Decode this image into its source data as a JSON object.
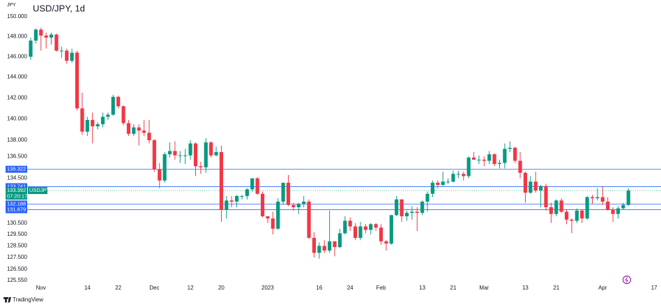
{
  "chart_data": {
    "type": "candlestick",
    "title": "USD/JPY, 1d",
    "currency": "JPY",
    "watermark": "TradingView",
    "log_scale": true,
    "up_color": "#089981",
    "down_color": "#f23645",
    "level_color": "#2962ff",
    "ylim": [
      125.3,
      151.7
    ],
    "yticks": [
      {
        "value": 150,
        "label": "150.000"
      },
      {
        "value": 148,
        "label": "148.000"
      },
      {
        "value": 146,
        "label": "146.000"
      },
      {
        "value": 144,
        "label": "144.000"
      },
      {
        "value": 142,
        "label": "142.000"
      },
      {
        "value": 140,
        "label": "140.000"
      },
      {
        "value": 138,
        "label": "138.000"
      },
      {
        "value": 136.5,
        "label": "136.500"
      },
      {
        "value": 134.5,
        "label": "134.500"
      },
      {
        "value": 130.5,
        "label": "130.500"
      },
      {
        "value": 129.5,
        "label": "129.500"
      },
      {
        "value": 128.5,
        "label": "128.500"
      },
      {
        "value": 127.5,
        "label": "127.500"
      },
      {
        "value": 126.5,
        "label": "126.500"
      },
      {
        "value": 125.55,
        "label": "125.550"
      }
    ],
    "levels": [
      135.322,
      133.741,
      132.188,
      131.679
    ],
    "last_price": {
      "value": 133.392,
      "symbol": "USDJPY",
      "countdown": "07:20:17"
    },
    "categories": [
      null,
      null,
      "Nov",
      null,
      null,
      null,
      null,
      null,
      null,
      null,
      null,
      "14",
      null,
      null,
      null,
      null,
      null,
      "22",
      null,
      null,
      null,
      null,
      null,
      null,
      "Dec",
      null,
      null,
      null,
      null,
      null,
      null,
      "12",
      null,
      null,
      null,
      null,
      null,
      "20",
      null,
      null,
      null,
      null,
      null,
      null,
      null,
      null,
      "2023",
      null,
      null,
      null,
      null,
      null,
      null,
      null,
      null,
      null,
      "16",
      null,
      null,
      null,
      null,
      null,
      "24",
      null,
      null,
      null,
      null,
      null,
      "Feb",
      null,
      null,
      null,
      null,
      null,
      null,
      null,
      "13",
      null,
      null,
      null,
      null,
      null,
      "21",
      null,
      null,
      null,
      null,
      null,
      "Mar",
      null,
      null,
      null,
      null,
      null,
      null,
      null,
      "13",
      null,
      null,
      null,
      null,
      null,
      "21",
      null,
      null,
      null,
      null,
      null,
      null,
      null,
      null,
      "Apr",
      null,
      null,
      null,
      null,
      null,
      null,
      null,
      null,
      null,
      "17"
    ],
    "open": [
      146.0,
      147.6,
      148.7,
      148.1,
      147.9,
      148.2,
      146.6,
      146.6,
      145.6,
      146.4,
      141.0,
      138.8,
      139.9,
      139.3,
      139.5,
      140.2,
      140.4,
      142.1,
      141.2,
      139.6,
      138.6,
      139.2,
      138.9,
      138.7,
      138.0,
      135.3,
      134.3,
      136.7,
      137.0,
      136.6,
      136.6,
      136.6,
      137.7,
      135.6,
      135.5,
      137.8,
      136.6,
      136.9,
      131.7,
      132.5,
      132.4,
      132.9,
      132.9,
      133.5,
      134.5,
      133.1,
      131.1,
      130.9,
      130.0,
      132.4,
      134.1,
      132.1,
      131.9,
      132.2,
      132.4,
      129.2,
      127.9,
      128.5,
      128.1,
      128.9,
      128.4,
      129.6,
      130.7,
      130.2,
      129.2,
      130.2,
      129.9,
      130.4,
      130.1,
      128.9,
      128.7,
      131.2,
      132.6,
      131.1,
      131.4,
      131.5,
      131.4,
      132.4,
      133.1,
      134.1,
      133.9,
      134.2,
      134.2,
      134.9,
      134.9,
      134.7,
      136.4,
      136.2,
      136.2,
      136.1,
      136.7,
      135.8,
      135.9,
      137.2,
      137.3,
      136.1,
      135.0,
      133.2,
      134.2,
      133.4,
      133.8,
      131.9,
      131.3,
      132.5,
      131.5,
      130.8,
      130.7,
      131.6,
      130.9,
      132.8,
      132.7,
      132.8,
      132.4,
      131.7,
      131.3,
      131.8,
      132.1,
      null,
      null,
      null,
      null,
      null
    ],
    "high": [
      147.9,
      148.8,
      148.9,
      148.4,
      148.4,
      148.3,
      147.0,
      146.8,
      146.8,
      146.6,
      142.5,
      140.2,
      140.6,
      139.7,
      140.6,
      140.6,
      142.3,
      142.2,
      141.3,
      139.9,
      139.5,
      139.5,
      139.9,
      139.9,
      138.1,
      135.9,
      136.9,
      137.8,
      137.9,
      137.0,
      137.2,
      138.0,
      137.8,
      136.0,
      138.2,
      137.9,
      137.4,
      137.5,
      132.9,
      132.9,
      133.0,
      133.0,
      133.6,
      134.5,
      134.6,
      133.3,
      131.1,
      131.5,
      132.7,
      134.1,
      134.8,
      132.3,
      132.3,
      132.9,
      132.6,
      129.7,
      128.8,
      129.0,
      131.6,
      128.9,
      130.0,
      131.1,
      131.0,
      130.5,
      130.6,
      130.4,
      130.5,
      130.5,
      130.4,
      129.0,
      131.2,
      132.9,
      132.6,
      131.6,
      132.0,
      131.9,
      132.5,
      133.3,
      134.3,
      134.3,
      135.1,
      134.5,
      135.2,
      135.2,
      135.1,
      136.5,
      136.9,
      136.6,
      136.5,
      137.0,
      136.8,
      136.2,
      137.7,
      137.9,
      137.4,
      136.9,
      135.1,
      134.7,
      135.1,
      133.9,
      134.0,
      132.3,
      132.6,
      132.7,
      131.7,
      130.9,
      131.8,
      131.7,
      132.9,
      133.0,
      133.6,
      133.8,
      132.8,
      131.9,
      132.0,
      132.3,
      133.6,
      null,
      null,
      null,
      null,
      null
    ],
    "low": [
      145.7,
      147.3,
      146.6,
      146.8,
      147.2,
      146.5,
      145.9,
      145.3,
      145.4,
      140.8,
      138.5,
      138.4,
      137.7,
      139.0,
      139.2,
      139.9,
      140.3,
      141.0,
      139.4,
      138.4,
      138.4,
      137.5,
      138.4,
      137.7,
      135.1,
      133.6,
      134.1,
      136.4,
      136.2,
      135.9,
      135.8,
      136.2,
      134.7,
      134.9,
      135.0,
      136.4,
      136.5,
      130.6,
      130.9,
      131.9,
      131.9,
      132.6,
      132.6,
      133.3,
      133.0,
      131.0,
      130.5,
      129.5,
      129.9,
      132.1,
      132.0,
      131.6,
      131.3,
      131.9,
      129.1,
      127.5,
      127.4,
      127.9,
      127.9,
      127.6,
      128.3,
      129.5,
      129.8,
      129.0,
      129.0,
      129.6,
      129.5,
      129.8,
      128.6,
      128.1,
      128.6,
      131.1,
      130.6,
      130.7,
      130.8,
      129.8,
      131.2,
      131.5,
      132.8,
      133.6,
      133.8,
      134.0,
      134.1,
      134.5,
      134.3,
      134.5,
      136.2,
      135.8,
      135.6,
      135.8,
      135.6,
      135.4,
      135.4,
      136.9,
      135.9,
      134.5,
      132.3,
      133.1,
      133.2,
      131.9,
      131.6,
      130.5,
      131.1,
      131.4,
      130.4,
      129.6,
      130.5,
      130.5,
      130.8,
      132.2,
      132.5,
      132.1,
      131.6,
      130.6,
      130.9,
      131.7,
      132.0,
      null,
      null,
      null,
      null,
      null
    ],
    "close": [
      147.6,
      148.7,
      148.1,
      147.9,
      148.2,
      146.6,
      146.6,
      145.6,
      146.4,
      141.0,
      138.8,
      139.9,
      139.3,
      139.5,
      140.2,
      140.4,
      142.1,
      141.2,
      139.6,
      138.6,
      139.2,
      138.9,
      138.7,
      138.0,
      135.3,
      134.3,
      136.7,
      137.0,
      136.6,
      136.6,
      136.6,
      137.7,
      135.6,
      135.5,
      137.8,
      136.6,
      136.9,
      131.7,
      132.5,
      132.4,
      132.9,
      132.9,
      133.5,
      134.5,
      133.1,
      131.1,
      130.9,
      130.0,
      132.4,
      134.1,
      132.1,
      131.9,
      132.2,
      132.4,
      129.2,
      127.9,
      128.5,
      128.1,
      128.9,
      128.4,
      129.6,
      130.7,
      130.2,
      129.2,
      130.2,
      129.9,
      130.4,
      130.1,
      128.9,
      128.7,
      131.2,
      132.6,
      131.1,
      131.4,
      131.5,
      131.4,
      132.4,
      133.1,
      134.1,
      133.9,
      134.2,
      134.2,
      134.9,
      134.9,
      134.7,
      136.4,
      136.2,
      136.2,
      136.1,
      136.7,
      135.8,
      135.9,
      137.2,
      137.3,
      136.1,
      135.0,
      133.2,
      134.2,
      133.4,
      133.8,
      131.9,
      131.3,
      132.5,
      131.5,
      130.8,
      130.7,
      131.6,
      130.9,
      132.8,
      132.7,
      132.8,
      132.4,
      131.7,
      131.3,
      131.8,
      132.1,
      133.39,
      null,
      null,
      null,
      null,
      null
    ]
  }
}
